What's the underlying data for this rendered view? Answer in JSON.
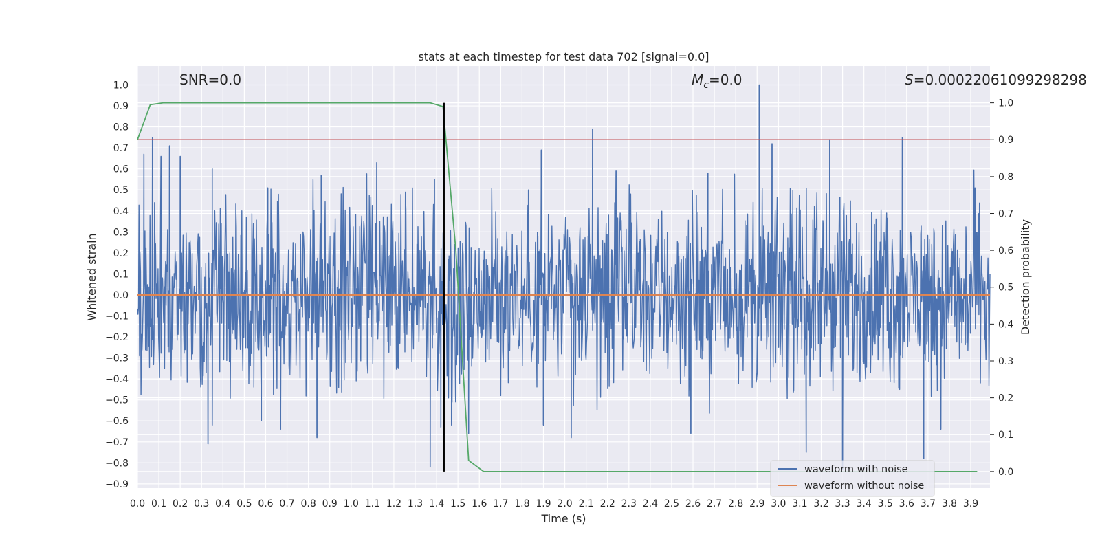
{
  "chart_data": {
    "type": "line",
    "title": "stats at each timestep for test data 702 [signal=0.0]",
    "xlabel": "Time (s)",
    "ylabel": "Whitened strain",
    "y2label": "Detection probability",
    "xlim": [
      0.0,
      3.99
    ],
    "ylim": [
      -0.92,
      1.09
    ],
    "y2lim": [
      -0.045,
      1.1
    ],
    "x_ticks": [
      "0.0",
      "0.1",
      "0.2",
      "0.3",
      "0.4",
      "0.5",
      "0.6",
      "0.7",
      "0.8",
      "0.9",
      "1.0",
      "1.1",
      "1.2",
      "1.3",
      "1.4",
      "1.5",
      "1.6",
      "1.7",
      "1.8",
      "1.9",
      "2.0",
      "2.1",
      "2.2",
      "2.3",
      "2.4",
      "2.5",
      "2.6",
      "2.7",
      "2.8",
      "2.9",
      "3.0",
      "3.1",
      "3.2",
      "3.3",
      "3.4",
      "3.5",
      "3.6",
      "3.7",
      "3.8",
      "3.9"
    ],
    "y_ticks": [
      "−0.9",
      "−0.8",
      "−0.7",
      "−0.6",
      "−0.5",
      "−0.4",
      "−0.3",
      "−0.2",
      "−0.1",
      "0.0",
      "0.1",
      "0.2",
      "0.3",
      "0.4",
      "0.5",
      "0.6",
      "0.7",
      "0.8",
      "0.9",
      "1.0"
    ],
    "y2_ticks": [
      "0.0",
      "0.1",
      "0.2",
      "0.3",
      "0.4",
      "0.5",
      "0.6",
      "0.7",
      "0.8",
      "0.9",
      "1.0"
    ],
    "annotations": {
      "snr": "SNR=0.0",
      "mc_symbol": "M",
      "mc_sub": "c",
      "mc_value": "=0.0",
      "s_symbol": "S",
      "s_value": "=0.00022061099298298",
      "s_value_clipped": "=0.000220610992982983"
    },
    "legend": [
      {
        "label": "waveform with noise",
        "color": "#4c72b0"
      },
      {
        "label": "waveform without noise",
        "color": "#dd8452"
      }
    ],
    "series": [
      {
        "name": "waveform with noise",
        "color": "#4c72b0",
        "axis": "left",
        "style": "dense noise, roughly ±0.3 envelope",
        "peaks": [
          {
            "x": 0.03,
            "y": 0.67
          },
          {
            "x": 0.07,
            "y": 0.75
          },
          {
            "x": 0.11,
            "y": 0.66
          },
          {
            "x": 0.15,
            "y": 0.71
          },
          {
            "x": 0.2,
            "y": 0.66
          },
          {
            "x": 0.35,
            "y": 0.6
          },
          {
            "x": 0.61,
            "y": 0.51
          },
          {
            "x": 0.86,
            "y": 0.57
          },
          {
            "x": 1.12,
            "y": 0.63
          },
          {
            "x": 1.39,
            "y": 0.55
          },
          {
            "x": 1.83,
            "y": 0.5
          },
          {
            "x": 1.89,
            "y": 0.69
          },
          {
            "x": 2.13,
            "y": 0.79
          },
          {
            "x": 2.24,
            "y": 0.59
          },
          {
            "x": 2.67,
            "y": 0.58
          },
          {
            "x": 2.91,
            "y": 1.0
          },
          {
            "x": 2.97,
            "y": 0.72
          },
          {
            "x": 3.24,
            "y": 0.74
          },
          {
            "x": 3.58,
            "y": 0.75
          },
          {
            "x": 3.92,
            "y": 0.51
          }
        ],
        "troughs": [
          {
            "x": 0.01,
            "y": -0.29
          },
          {
            "x": 0.33,
            "y": -0.71
          },
          {
            "x": 0.35,
            "y": -0.62
          },
          {
            "x": 0.58,
            "y": -0.6
          },
          {
            "x": 0.67,
            "y": -0.64
          },
          {
            "x": 0.84,
            "y": -0.68
          },
          {
            "x": 1.37,
            "y": -0.82
          },
          {
            "x": 1.42,
            "y": -0.63
          },
          {
            "x": 1.47,
            "y": -0.62
          },
          {
            "x": 1.55,
            "y": -0.66
          },
          {
            "x": 1.9,
            "y": -0.62
          },
          {
            "x": 2.03,
            "y": -0.68
          },
          {
            "x": 2.59,
            "y": -0.66
          },
          {
            "x": 3.13,
            "y": -0.75
          },
          {
            "x": 3.3,
            "y": -0.83
          },
          {
            "x": 3.68,
            "y": -0.78
          },
          {
            "x": 3.76,
            "y": -0.64
          }
        ]
      },
      {
        "name": "waveform without noise",
        "color": "#dd8452",
        "axis": "left",
        "x": [
          0.0,
          3.99
        ],
        "y": [
          0.0,
          0.0
        ]
      },
      {
        "name": "",
        "color": "#55a868",
        "axis": "right",
        "x": [
          0.0,
          0.06,
          0.12,
          1.37,
          1.43,
          1.49,
          1.55,
          1.62,
          1.7,
          3.93
        ],
        "y": [
          0.9,
          0.995,
          1.0,
          1.0,
          0.99,
          0.6,
          0.03,
          0.0,
          0.0,
          0.0
        ]
      }
    ],
    "threshold_line": {
      "axis": "right",
      "y": 0.9,
      "color": "#c44e52"
    },
    "vertical_line": {
      "x": 1.435,
      "y_from": 0.0,
      "y_to": 1.0,
      "axis": "right",
      "color": "#000000"
    },
    "background": "#eaeaf2",
    "grid": true,
    "legend_position": "lower right"
  }
}
